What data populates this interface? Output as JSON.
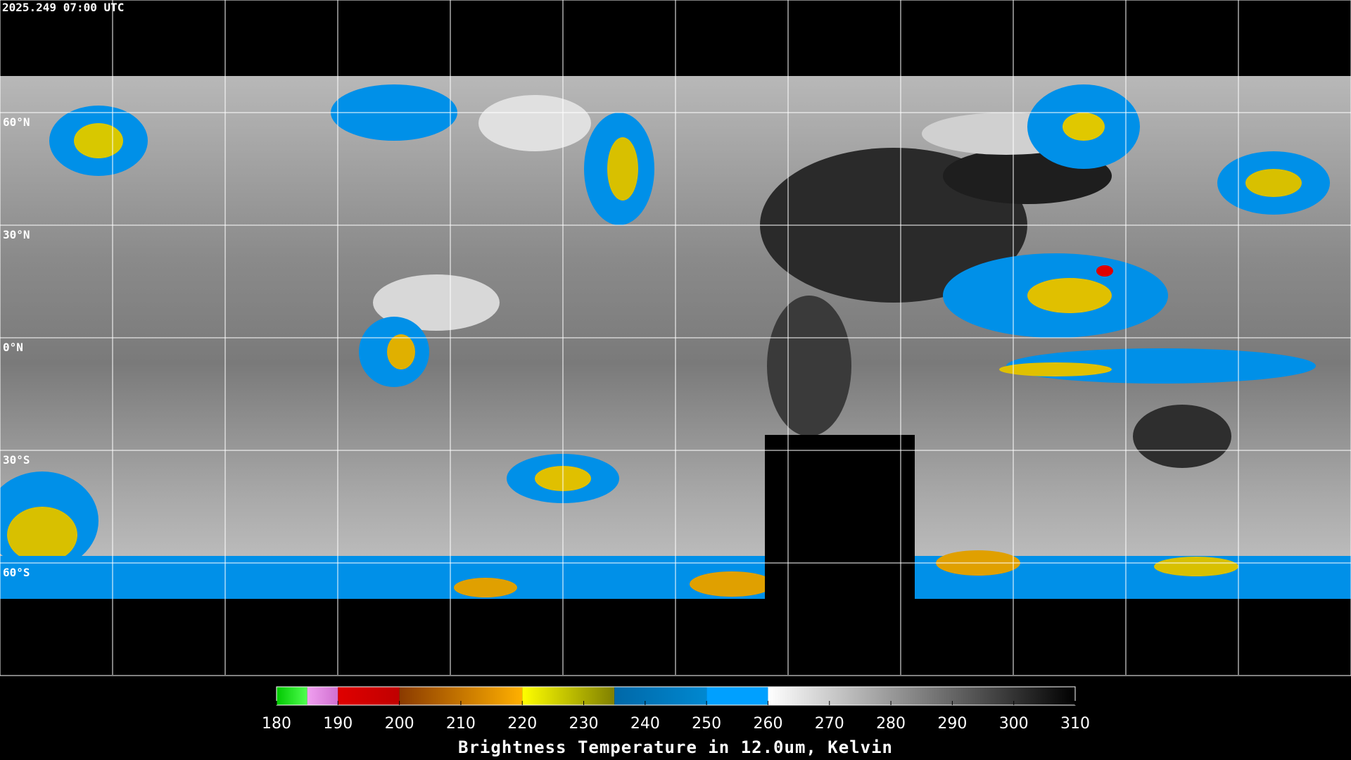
{
  "header": {
    "timestamp": "2025.249 07:00 UTC"
  },
  "grid": {
    "lat_labels": [
      "60°N",
      "30°N",
      "0°N",
      "30°S",
      "60°S"
    ]
  },
  "colorbar": {
    "title": "Brightness Temperature in 12.0um, Kelvin",
    "range": [
      180,
      310
    ],
    "ticks": [
      180,
      190,
      200,
      210,
      220,
      230,
      240,
      250,
      260,
      270,
      280,
      290,
      300,
      310
    ],
    "segments": [
      {
        "from": 180,
        "to": 185,
        "colors": [
          "#00c800",
          "#50ff50"
        ]
      },
      {
        "from": 185,
        "to": 190,
        "colors": [
          "#f0a0f0",
          "#d070d0"
        ]
      },
      {
        "from": 190,
        "to": 200,
        "colors": [
          "#e00000",
          "#c00000"
        ]
      },
      {
        "from": 200,
        "to": 220,
        "colors": [
          "#8a3a00",
          "#ffb000"
        ]
      },
      {
        "from": 220,
        "to": 235,
        "colors": [
          "#ffff00",
          "#808000"
        ]
      },
      {
        "from": 235,
        "to": 250,
        "colors": [
          "#0068a8",
          "#0088d0"
        ]
      },
      {
        "from": 250,
        "to": 260,
        "colors": [
          "#00a0ff",
          "#00a0ff"
        ]
      },
      {
        "from": 260,
        "to": 310,
        "colors": [
          "#ffffff",
          "#000000"
        ]
      }
    ]
  }
}
